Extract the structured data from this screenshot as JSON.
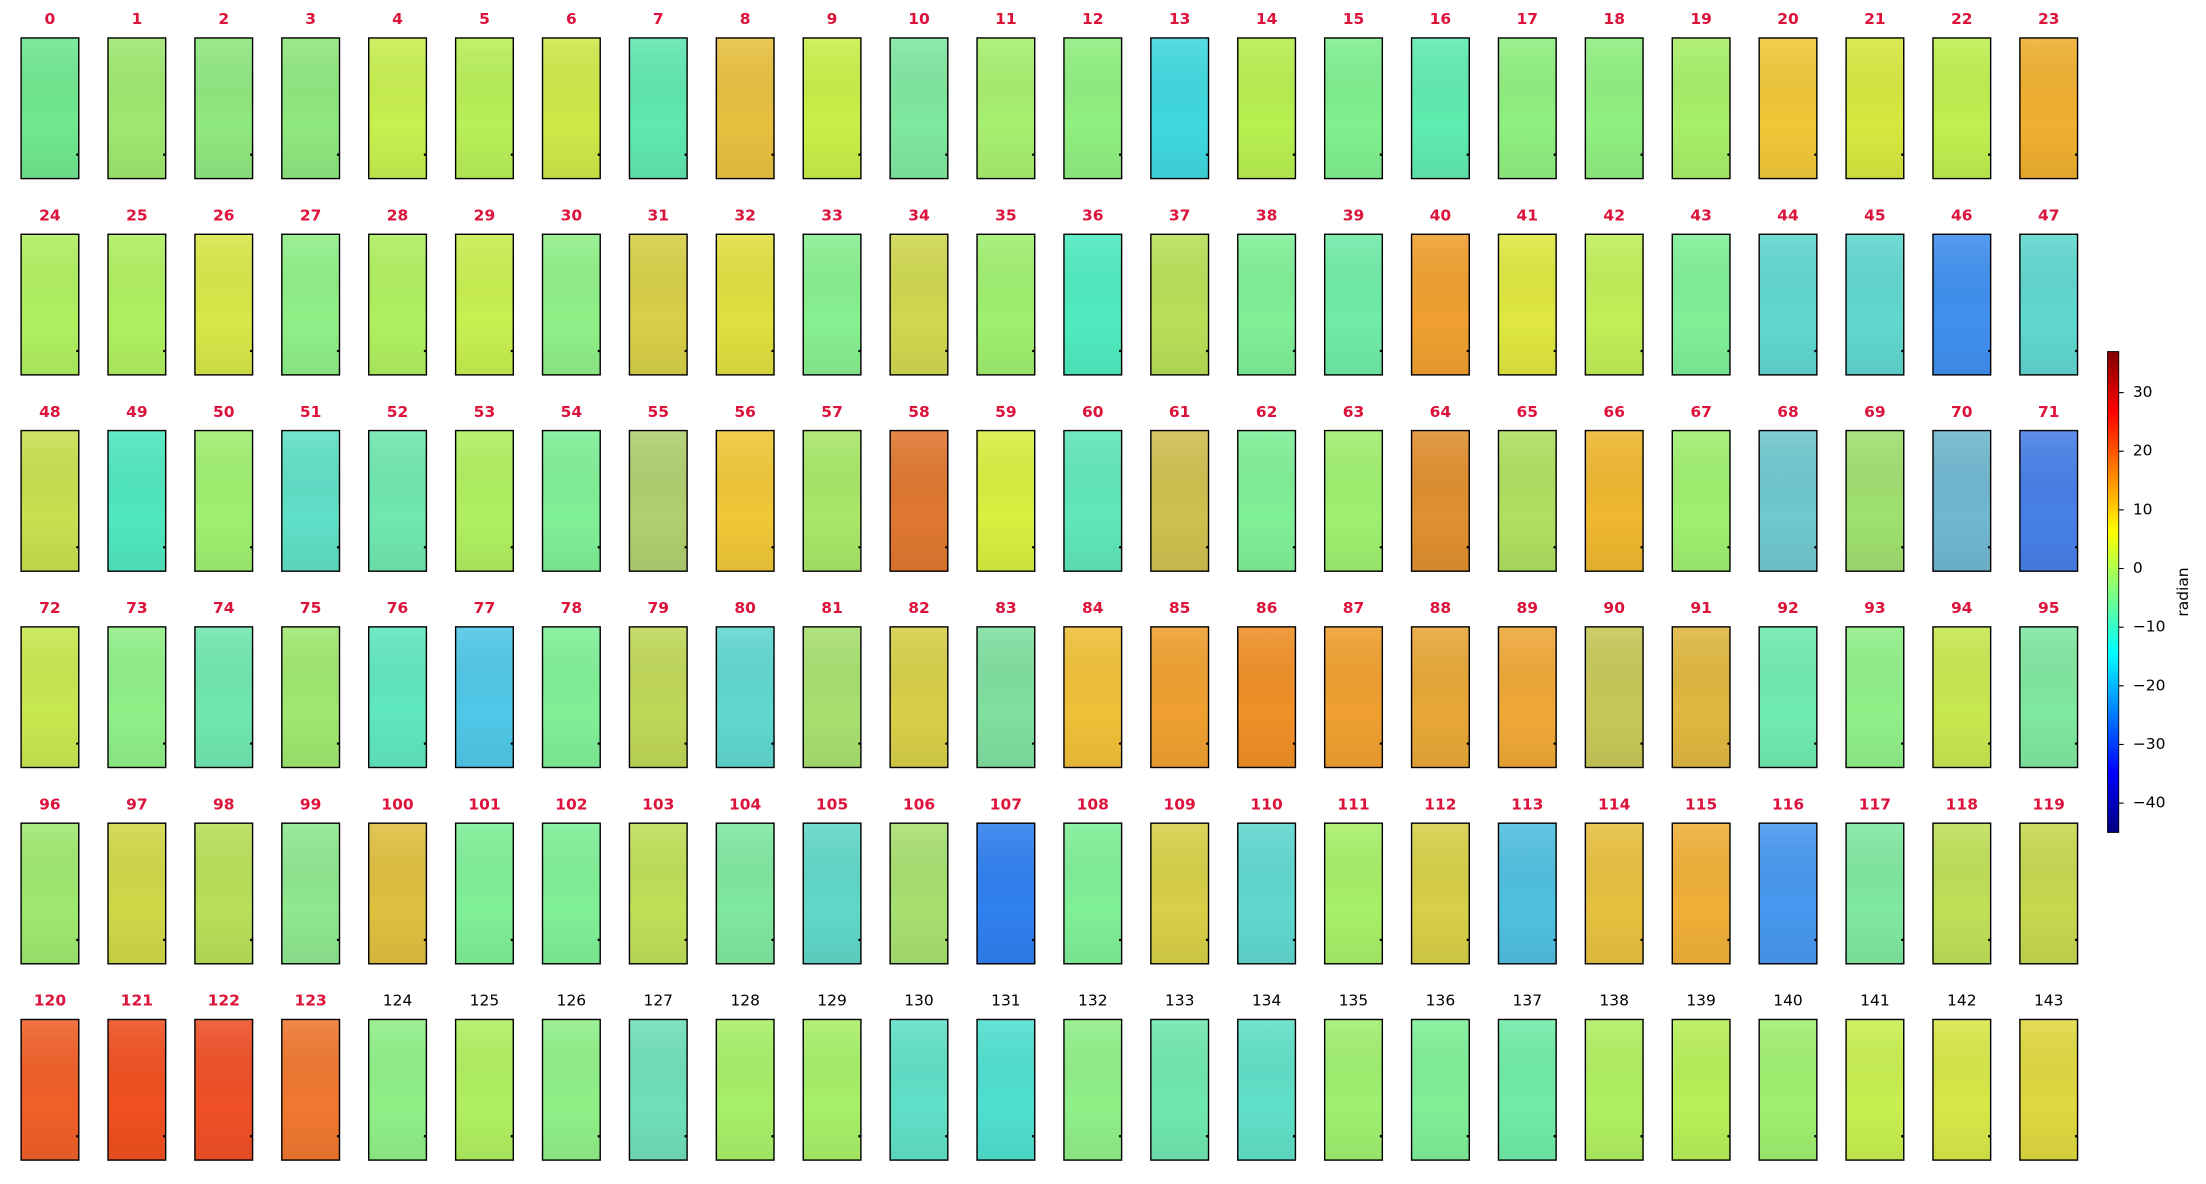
{
  "panels_figure": {
    "columns": 24,
    "colorbar": {
      "label": "radian",
      "clim": [
        -45,
        37
      ],
      "cmap": "jet",
      "ticks": [
        {
          "value": 30,
          "label": "30"
        },
        {
          "value": 20,
          "label": "20"
        },
        {
          "value": 10,
          "label": "10"
        },
        {
          "value": 0,
          "label": "0"
        },
        {
          "value": -10,
          "label": "−10"
        },
        {
          "value": -20,
          "label": "−20"
        },
        {
          "value": -30,
          "label": "−30"
        },
        {
          "value": -40,
          "label": "−40"
        }
      ]
    },
    "panels": [
      {
        "label": "0",
        "color": "#70e890",
        "label_color": "#dc143c"
      },
      {
        "label": "1",
        "color": "#a0e870",
        "label_color": "#dc143c"
      },
      {
        "label": "2",
        "color": "#90e880",
        "label_color": "#dc143c"
      },
      {
        "label": "3",
        "color": "#90e880",
        "label_color": "#dc143c"
      },
      {
        "label": "4",
        "color": "#c8f050",
        "label_color": "#dc143c"
      },
      {
        "label": "5",
        "color": "#b8f058",
        "label_color": "#dc143c"
      },
      {
        "label": "6",
        "color": "#d0e848",
        "label_color": "#dc143c"
      },
      {
        "label": "7",
        "color": "#60e8b0",
        "label_color": "#dc143c"
      },
      {
        "label": "8",
        "color": "#e8c040",
        "label_color": "#dc143c"
      },
      {
        "label": "9",
        "color": "#c8f048",
        "label_color": "#dc143c"
      },
      {
        "label": "10",
        "color": "#80e8a0",
        "label_color": "#dc143c"
      },
      {
        "label": "11",
        "color": "#a8f070",
        "label_color": "#dc143c"
      },
      {
        "label": "12",
        "color": "#90f080",
        "label_color": "#dc143c"
      },
      {
        "label": "13",
        "color": "#40d8e0",
        "label_color": "#dc143c"
      },
      {
        "label": "14",
        "color": "#b8f050",
        "label_color": "#dc143c"
      },
      {
        "label": "15",
        "color": "#80f090",
        "label_color": "#dc143c"
      },
      {
        "label": "16",
        "color": "#60ecb0",
        "label_color": "#dc143c"
      },
      {
        "label": "17",
        "color": "#90f080",
        "label_color": "#dc143c"
      },
      {
        "label": "18",
        "color": "#90f080",
        "label_color": "#dc143c"
      },
      {
        "label": "19",
        "color": "#a8f068",
        "label_color": "#dc143c"
      },
      {
        "label": "20",
        "color": "#f0c838",
        "label_color": "#dc143c"
      },
      {
        "label": "21",
        "color": "#d8e840",
        "label_color": "#dc143c"
      },
      {
        "label": "22",
        "color": "#c0f050",
        "label_color": "#dc143c"
      },
      {
        "label": "23",
        "color": "#f0b030",
        "label_color": "#dc143c"
      },
      {
        "label": "24",
        "color": "#b0f060",
        "label_color": "#dc143c"
      },
      {
        "label": "25",
        "color": "#b0f060",
        "label_color": "#dc143c"
      },
      {
        "label": "26",
        "color": "#d8e848",
        "label_color": "#dc143c"
      },
      {
        "label": "27",
        "color": "#90f088",
        "label_color": "#dc143c"
      },
      {
        "label": "28",
        "color": "#b0f060",
        "label_color": "#dc143c"
      },
      {
        "label": "29",
        "color": "#c8f050",
        "label_color": "#dc143c"
      },
      {
        "label": "30",
        "color": "#90f088",
        "label_color": "#dc143c"
      },
      {
        "label": "31",
        "color": "#d8d048",
        "label_color": "#dc143c"
      },
      {
        "label": "32",
        "color": "#e0e040",
        "label_color": "#dc143c"
      },
      {
        "label": "33",
        "color": "#88f090",
        "label_color": "#dc143c"
      },
      {
        "label": "34",
        "color": "#d0d850",
        "label_color": "#dc143c"
      },
      {
        "label": "35",
        "color": "#a0f070",
        "label_color": "#dc143c"
      },
      {
        "label": "36",
        "color": "#50ecc0",
        "label_color": "#dc143c"
      },
      {
        "label": "37",
        "color": "#b8e058",
        "label_color": "#dc143c"
      },
      {
        "label": "38",
        "color": "#80f098",
        "label_color": "#dc143c"
      },
      {
        "label": "39",
        "color": "#70eca8",
        "label_color": "#dc143c"
      },
      {
        "label": "40",
        "color": "#f0a030",
        "label_color": "#dc143c"
      },
      {
        "label": "41",
        "color": "#e0e840",
        "label_color": "#dc143c"
      },
      {
        "label": "42",
        "color": "#c0f058",
        "label_color": "#dc143c"
      },
      {
        "label": "43",
        "color": "#80f098",
        "label_color": "#dc143c"
      },
      {
        "label": "44",
        "color": "#60d8d0",
        "label_color": "#dc143c"
      },
      {
        "label": "45",
        "color": "#60d8d0",
        "label_color": "#dc143c"
      },
      {
        "label": "46",
        "color": "#4090f0",
        "label_color": "#dc143c"
      },
      {
        "label": "47",
        "color": "#60d8d0",
        "label_color": "#dc143c"
      },
      {
        "label": "48",
        "color": "#c8e050",
        "label_color": "#dc143c"
      },
      {
        "label": "49",
        "color": "#50e8c0",
        "label_color": "#dc143c"
      },
      {
        "label": "50",
        "color": "#a0f070",
        "label_color": "#dc143c"
      },
      {
        "label": "51",
        "color": "#60e0c8",
        "label_color": "#dc143c"
      },
      {
        "label": "52",
        "color": "#70e8b0",
        "label_color": "#dc143c"
      },
      {
        "label": "53",
        "color": "#b0f060",
        "label_color": "#dc143c"
      },
      {
        "label": "54",
        "color": "#80f098",
        "label_color": "#dc143c"
      },
      {
        "label": "55",
        "color": "#b0d070",
        "label_color": "#dc143c"
      },
      {
        "label": "56",
        "color": "#f0c838",
        "label_color": "#dc143c"
      },
      {
        "label": "57",
        "color": "#a8e868",
        "label_color": "#dc143c"
      },
      {
        "label": "58",
        "color": "#e07830",
        "label_color": "#dc143c"
      },
      {
        "label": "59",
        "color": "#d8f040",
        "label_color": "#dc143c"
      },
      {
        "label": "60",
        "color": "#60e8b8",
        "label_color": "#dc143c"
      },
      {
        "label": "61",
        "color": "#d0c050",
        "label_color": "#dc143c"
      },
      {
        "label": "62",
        "color": "#80f098",
        "label_color": "#dc143c"
      },
      {
        "label": "63",
        "color": "#a0f070",
        "label_color": "#dc143c"
      },
      {
        "label": "64",
        "color": "#e09030",
        "label_color": "#dc143c"
      },
      {
        "label": "65",
        "color": "#b0e060",
        "label_color": "#dc143c"
      },
      {
        "label": "66",
        "color": "#f0b830",
        "label_color": "#dc143c"
      },
      {
        "label": "67",
        "color": "#a0f070",
        "label_color": "#dc143c"
      },
      {
        "label": "68",
        "color": "#70c8d0",
        "label_color": "#dc143c"
      },
      {
        "label": "69",
        "color": "#a0e070",
        "label_color": "#dc143c"
      },
      {
        "label": "70",
        "color": "#70b8d0",
        "label_color": "#dc143c"
      },
      {
        "label": "71",
        "color": "#4880e8",
        "label_color": "#dc143c"
      },
      {
        "label": "72",
        "color": "#c8e850",
        "label_color": "#dc143c"
      },
      {
        "label": "73",
        "color": "#90f088",
        "label_color": "#dc143c"
      },
      {
        "label": "74",
        "color": "#70e8b0",
        "label_color": "#dc143c"
      },
      {
        "label": "75",
        "color": "#a0e870",
        "label_color": "#dc143c"
      },
      {
        "label": "76",
        "color": "#60e8c0",
        "label_color": "#dc143c"
      },
      {
        "label": "77",
        "color": "#50c8e8",
        "label_color": "#dc143c"
      },
      {
        "label": "78",
        "color": "#80f098",
        "label_color": "#dc143c"
      },
      {
        "label": "79",
        "color": "#c0d858",
        "label_color": "#dc143c"
      },
      {
        "label": "80",
        "color": "#60d8d0",
        "label_color": "#dc143c"
      },
      {
        "label": "81",
        "color": "#a8e070",
        "label_color": "#dc143c"
      },
      {
        "label": "82",
        "color": "#d8d048",
        "label_color": "#dc143c"
      },
      {
        "label": "83",
        "color": "#80e0a0",
        "label_color": "#dc143c"
      },
      {
        "label": "84",
        "color": "#f0c038",
        "label_color": "#dc143c"
      },
      {
        "label": "85",
        "color": "#f0a030",
        "label_color": "#dc143c"
      },
      {
        "label": "86",
        "color": "#f09028",
        "label_color": "#dc143c"
      },
      {
        "label": "87",
        "color": "#f0a030",
        "label_color": "#dc143c"
      },
      {
        "label": "88",
        "color": "#e8a838",
        "label_color": "#dc143c"
      },
      {
        "label": "89",
        "color": "#f0a838",
        "label_color": "#dc143c"
      },
      {
        "label": "90",
        "color": "#c8c858",
        "label_color": "#dc143c"
      },
      {
        "label": "91",
        "color": "#e0b840",
        "label_color": "#dc143c"
      },
      {
        "label": "92",
        "color": "#70ecb0",
        "label_color": "#dc143c"
      },
      {
        "label": "93",
        "color": "#90f088",
        "label_color": "#dc143c"
      },
      {
        "label": "94",
        "color": "#c8e850",
        "label_color": "#dc143c"
      },
      {
        "label": "95",
        "color": "#80e8a0",
        "label_color": "#dc143c"
      },
      {
        "label": "96",
        "color": "#a0e870",
        "label_color": "#dc143c"
      },
      {
        "label": "97",
        "color": "#d0d848",
        "label_color": "#dc143c"
      },
      {
        "label": "98",
        "color": "#b8e058",
        "label_color": "#dc143c"
      },
      {
        "label": "99",
        "color": "#90e890",
        "label_color": "#dc143c"
      },
      {
        "label": "100",
        "color": "#e0c040",
        "label_color": "#dc143c"
      },
      {
        "label": "101",
        "color": "#80f098",
        "label_color": "#dc143c"
      },
      {
        "label": "102",
        "color": "#80f098",
        "label_color": "#dc143c"
      },
      {
        "label": "103",
        "color": "#c0e058",
        "label_color": "#dc143c"
      },
      {
        "label": "104",
        "color": "#80e8a0",
        "label_color": "#dc143c"
      },
      {
        "label": "105",
        "color": "#60d8c8",
        "label_color": "#dc143c"
      },
      {
        "label": "106",
        "color": "#a8e070",
        "label_color": "#dc143c"
      },
      {
        "label": "107",
        "color": "#3080f0",
        "label_color": "#dc143c"
      },
      {
        "label": "108",
        "color": "#80f098",
        "label_color": "#dc143c"
      },
      {
        "label": "109",
        "color": "#d8d048",
        "label_color": "#dc143c"
      },
      {
        "label": "110",
        "color": "#60d8d0",
        "label_color": "#dc143c"
      },
      {
        "label": "111",
        "color": "#a8f068",
        "label_color": "#dc143c"
      },
      {
        "label": "112",
        "color": "#d8d048",
        "label_color": "#dc143c"
      },
      {
        "label": "113",
        "color": "#50c0e0",
        "label_color": "#dc143c"
      },
      {
        "label": "114",
        "color": "#e8c040",
        "label_color": "#dc143c"
      },
      {
        "label": "115",
        "color": "#f0b038",
        "label_color": "#dc143c"
      },
      {
        "label": "116",
        "color": "#4898f0",
        "label_color": "#dc143c"
      },
      {
        "label": "117",
        "color": "#80e8a0",
        "label_color": "#dc143c"
      },
      {
        "label": "118",
        "color": "#c0e058",
        "label_color": "#dc143c"
      },
      {
        "label": "119",
        "color": "#c8d850",
        "label_color": "#dc143c"
      },
      {
        "label": "120",
        "color": "#f06028",
        "label_color": "#dc143c"
      },
      {
        "label": "121",
        "color": "#f05020",
        "label_color": "#dc143c"
      },
      {
        "label": "122",
        "color": "#f05028",
        "label_color": "#dc143c"
      },
      {
        "label": "123",
        "color": "#f07830",
        "label_color": "#dc143c"
      },
      {
        "label": "124",
        "color": "#90f088",
        "label_color": "#000000"
      },
      {
        "label": "125",
        "color": "#b0f060",
        "label_color": "#000000"
      },
      {
        "label": "126",
        "color": "#90f088",
        "label_color": "#000000"
      },
      {
        "label": "127",
        "color": "#70e0b8",
        "label_color": "#000000"
      },
      {
        "label": "128",
        "color": "#a8f068",
        "label_color": "#000000"
      },
      {
        "label": "129",
        "color": "#a8f068",
        "label_color": "#000000"
      },
      {
        "label": "130",
        "color": "#60e0c8",
        "label_color": "#000000"
      },
      {
        "label": "131",
        "color": "#50e0d0",
        "label_color": "#000000"
      },
      {
        "label": "132",
        "color": "#90f088",
        "label_color": "#000000"
      },
      {
        "label": "133",
        "color": "#70e8b0",
        "label_color": "#000000"
      },
      {
        "label": "134",
        "color": "#60e0c8",
        "label_color": "#000000"
      },
      {
        "label": "135",
        "color": "#a0f070",
        "label_color": "#000000"
      },
      {
        "label": "136",
        "color": "#80f098",
        "label_color": "#000000"
      },
      {
        "label": "137",
        "color": "#70eca8",
        "label_color": "#000000"
      },
      {
        "label": "138",
        "color": "#b0f060",
        "label_color": "#000000"
      },
      {
        "label": "139",
        "color": "#b8f058",
        "label_color": "#000000"
      },
      {
        "label": "140",
        "color": "#a0f070",
        "label_color": "#000000"
      },
      {
        "label": "141",
        "color": "#c8f050",
        "label_color": "#000000"
      },
      {
        "label": "142",
        "color": "#d8e848",
        "label_color": "#000000"
      },
      {
        "label": "143",
        "color": "#e0d840",
        "label_color": "#000000"
      }
    ]
  }
}
